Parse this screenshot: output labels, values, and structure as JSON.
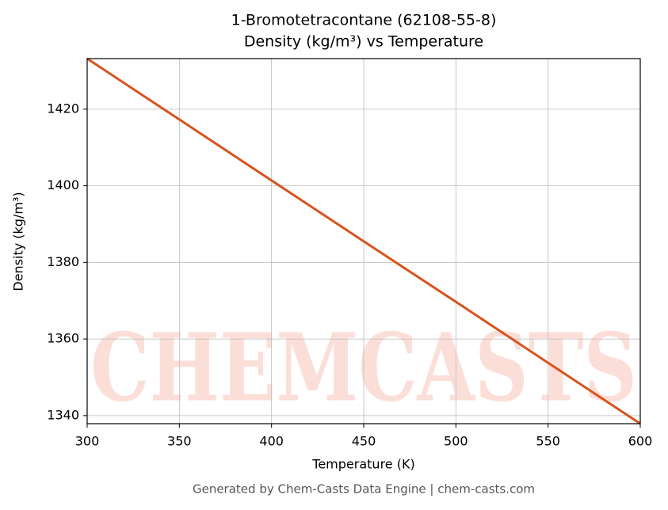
{
  "chart_data": {
    "type": "line",
    "title": "1-Bromotetracontane (62108-55-8)",
    "subtitle": "Density (kg/m³) vs Temperature",
    "x_label": "Temperature (K)",
    "y_label": "Density (kg/m³)",
    "watermark": "CHEMCASTS",
    "footer": "Generated by Chem-Casts Data Engine | chem-casts.com",
    "x": [
      300,
      350,
      400,
      450,
      500,
      550,
      600
    ],
    "series": [
      {
        "name": "Density",
        "color": "#d9531e",
        "values": [
          1433.2,
          1417.3,
          1401.4,
          1385.5,
          1369.7,
          1353.8,
          1337.9
        ]
      }
    ],
    "xlim": [
      300,
      600
    ],
    "xticks": [
      300,
      350,
      400,
      450,
      500,
      550,
      600
    ],
    "ylim": [
      1337.9,
      1433.2
    ],
    "yticks": [
      1340,
      1360,
      1380,
      1400,
      1420
    ],
    "grid": true
  }
}
